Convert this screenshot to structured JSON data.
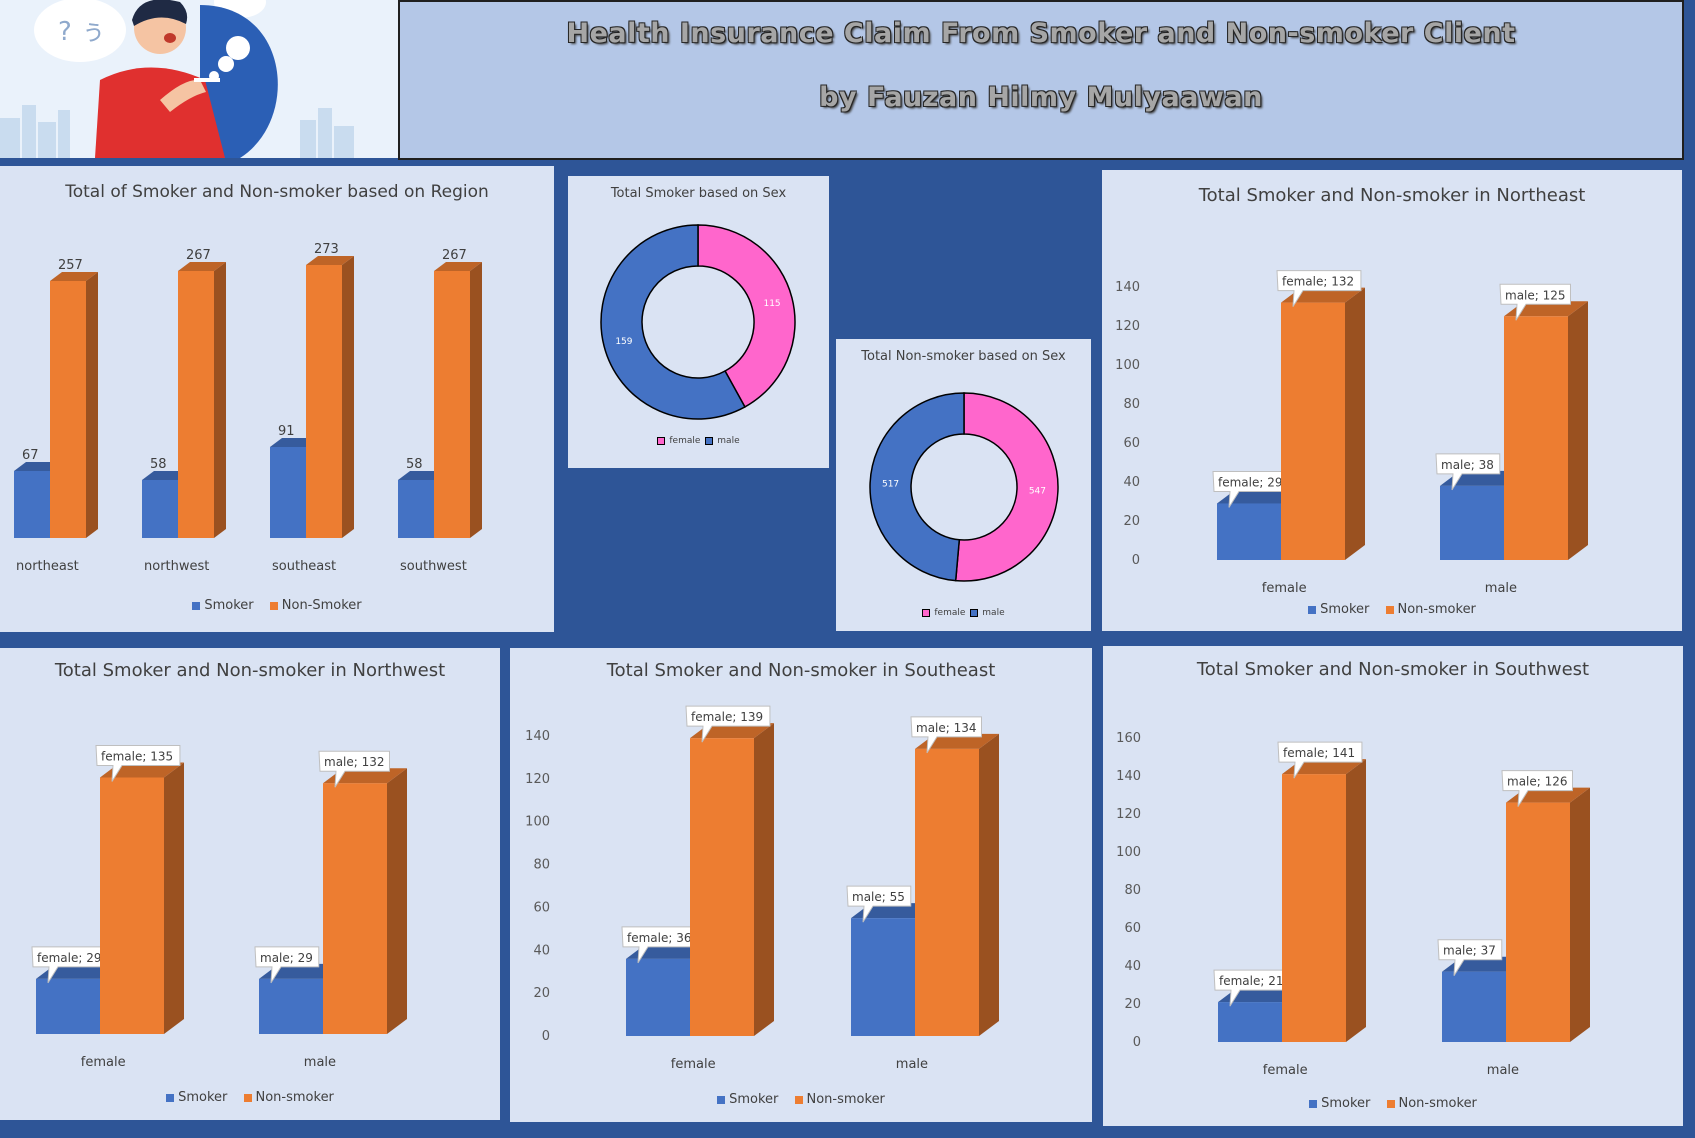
{
  "header": {
    "title": "Health Insurance Claim From Smoker and Non-smoker Client",
    "subtitle": "by Fauzan Hilmy Mulyaawan"
  },
  "colors": {
    "smoker": "#4472c4",
    "non_smoker": "#ed7d31",
    "female": "#ff66cc",
    "male": "#4472c4",
    "panel": "#dae3f3",
    "background": "#2e5597"
  },
  "chart_data": [
    {
      "id": "region",
      "type": "bar",
      "title": "Total of Smoker and Non-smoker based on Region",
      "categories": [
        "northeast",
        "northwest",
        "southeast",
        "southwest"
      ],
      "series": [
        {
          "name": "Smoker",
          "values": [
            67,
            58,
            91,
            58
          ]
        },
        {
          "name": "Non-Smoker",
          "values": [
            257,
            267,
            273,
            267
          ]
        }
      ],
      "ylim": [
        0,
        300
      ],
      "grid": false,
      "legend": "bottom"
    },
    {
      "id": "smoker_sex",
      "type": "pie",
      "title": "Total Smoker based on Sex",
      "labels": [
        "female",
        "male"
      ],
      "values": [
        115,
        159
      ],
      "legend": "bottom"
    },
    {
      "id": "nonsmoker_sex",
      "type": "pie",
      "title": "Total Non-smoker based on Sex",
      "labels": [
        "female",
        "male"
      ],
      "values": [
        547,
        517
      ],
      "legend": "bottom"
    },
    {
      "id": "northeast",
      "type": "bar",
      "title": "Total Smoker and Non-smoker in Northeast",
      "categories": [
        "female",
        "male"
      ],
      "series": [
        {
          "name": "Smoker",
          "values": [
            29,
            38
          ]
        },
        {
          "name": "Non-smoker",
          "values": [
            132,
            125
          ]
        }
      ],
      "ylim": [
        0,
        140
      ],
      "yticks": [
        0,
        20,
        40,
        60,
        80,
        100,
        120,
        140
      ],
      "grid": false,
      "legend": "bottom"
    },
    {
      "id": "northwest",
      "type": "bar",
      "title": "Total Smoker and Non-smoker in Northwest",
      "categories": [
        "female",
        "male"
      ],
      "series": [
        {
          "name": "Smoker",
          "values": [
            29,
            29
          ]
        },
        {
          "name": "Non-smoker",
          "values": [
            135,
            132
          ]
        }
      ],
      "ylim": [
        0,
        140
      ],
      "grid": false,
      "legend": "bottom"
    },
    {
      "id": "southeast",
      "type": "bar",
      "title": "Total Smoker and Non-smoker in Southeast",
      "categories": [
        "female",
        "male"
      ],
      "series": [
        {
          "name": "Smoker",
          "values": [
            36,
            55
          ]
        },
        {
          "name": "Non-smoker",
          "values": [
            139,
            134
          ]
        }
      ],
      "ylim": [
        0,
        140
      ],
      "yticks": [
        0,
        20,
        40,
        60,
        80,
        100,
        120,
        140
      ],
      "grid": false,
      "legend": "bottom"
    },
    {
      "id": "southwest",
      "type": "bar",
      "title": "Total Smoker and Non-smoker in Southwest",
      "categories": [
        "female",
        "male"
      ],
      "series": [
        {
          "name": "Smoker",
          "values": [
            21,
            37
          ]
        },
        {
          "name": "Non-smoker",
          "values": [
            141,
            126
          ]
        }
      ],
      "ylim": [
        0,
        160
      ],
      "yticks": [
        0,
        20,
        40,
        60,
        80,
        100,
        120,
        140,
        160
      ],
      "grid": false,
      "legend": "bottom"
    }
  ]
}
